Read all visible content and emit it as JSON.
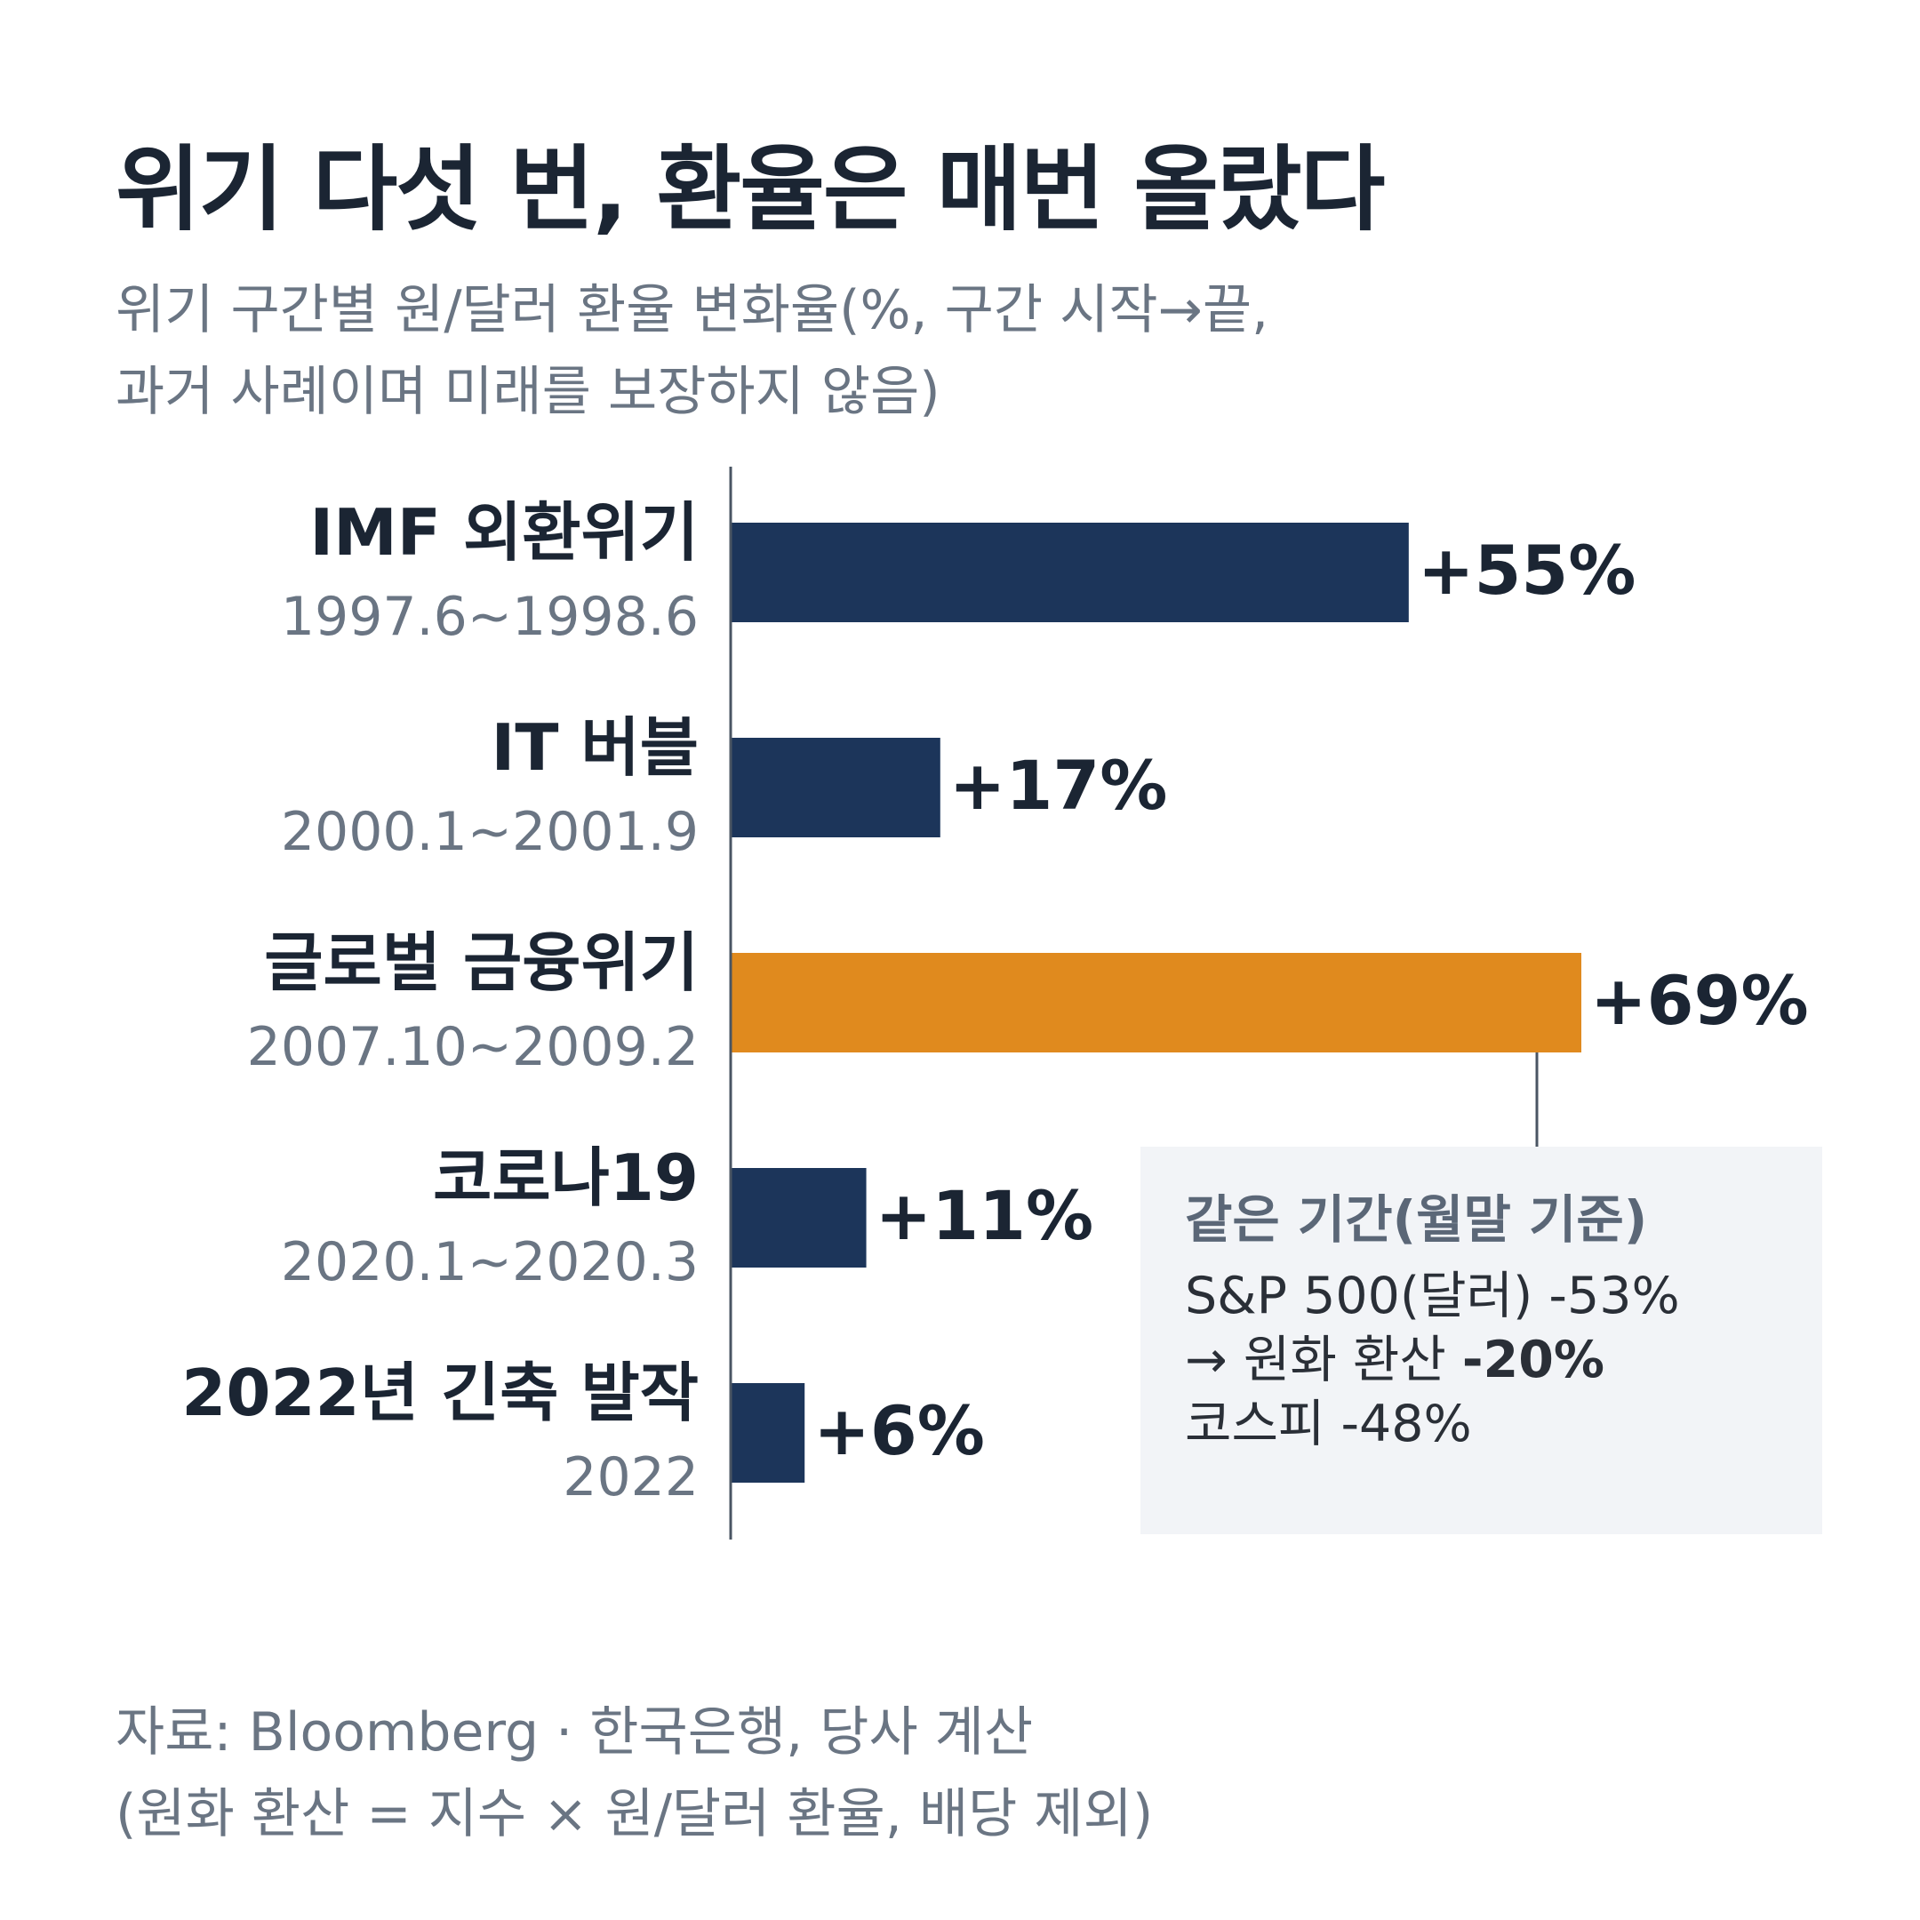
{
  "title": "위기 다섯 번, 환율은 매번 올랐다",
  "subtitle": [
    "위기 구간별 원/달러 환율 변화율(%, 구간 시작→끝,",
    "과거 사례이며 미래를 보장하지 않음)"
  ],
  "chart_data": {
    "type": "bar",
    "orientation": "horizontal",
    "categories": [
      "IMF 외환위기",
      "IT 버블",
      "글로벌 금융위기",
      "코로나19",
      "2022년 긴축 발작"
    ],
    "periods": [
      "1997.6~1998.6",
      "2000.1~2001.9",
      "2007.10~2009.2",
      "2020.1~2020.3",
      "2022"
    ],
    "values": [
      55,
      17,
      69,
      11,
      6
    ],
    "value_labels": [
      "+55%",
      "+17%",
      "+69%",
      "+11%",
      "+6%"
    ],
    "highlight_index": 2,
    "colors": {
      "bar": "#1c355a",
      "highlight": "#e08a1e",
      "axis": "#4a5563"
    },
    "xlim": [
      0,
      69
    ]
  },
  "callout": {
    "title": "같은 기간(월말 기준)",
    "line1": "S&P 500(달러) -53%",
    "line2_prefix": "→ 원화 환산 ",
    "line2_bold": "-20%",
    "line3": "코스피 -48%"
  },
  "source": [
    "자료: Bloomberg · 한국은행, 당사 계산",
    "(원화 환산 = 지수 × 원/달러 환율, 배당 제외)"
  ]
}
